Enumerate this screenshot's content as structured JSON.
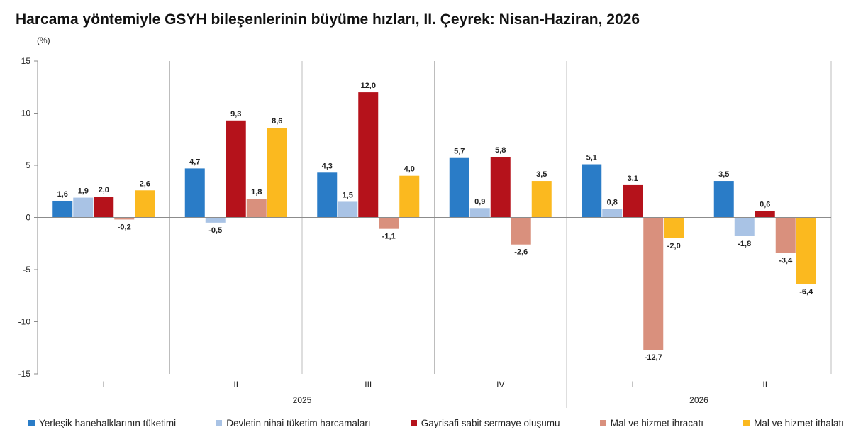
{
  "title": "Harcama yöntemiyle GSYH bileşenlerinin büyüme hızları, II. Çeyrek: Nisan-Haziran, 2026",
  "chart_data": {
    "type": "bar",
    "title": "Harcama yöntemiyle GSYH bileşenlerinin büyüme hızları, II. Çeyrek: Nisan-Haziran, 2026",
    "ylabel": "(%)",
    "ylim": [
      -15,
      15
    ],
    "yticks": [
      15,
      10,
      5,
      0,
      -5,
      -10,
      -15
    ],
    "grid": false,
    "legend_position": "bottom",
    "categories": [
      "I",
      "II",
      "III",
      "IV",
      "I",
      "II"
    ],
    "year_groups": [
      {
        "label": "2025",
        "categories": [
          0,
          1,
          2,
          3
        ]
      },
      {
        "label": "2026",
        "categories": [
          4,
          5
        ]
      }
    ],
    "series": [
      {
        "name": "Yerleşik hanehalklarının tüketimi",
        "color": "#2a7cc7",
        "values": [
          1.6,
          4.7,
          4.3,
          5.7,
          5.1,
          3.5
        ]
      },
      {
        "name": "Devletin nihai tüketim harcamaları",
        "color": "#a9c3e5",
        "values": [
          1.9,
          -0.5,
          1.5,
          0.9,
          0.8,
          -1.8
        ]
      },
      {
        "name": "Gayrisafi sabit sermaye oluşumu",
        "color": "#b5121b",
        "values": [
          2.0,
          9.3,
          12.0,
          5.8,
          3.1,
          0.6
        ]
      },
      {
        "name": "Mal ve hizmet ihracatı",
        "color": "#d9907d",
        "values": [
          -0.2,
          1.8,
          -1.1,
          -2.6,
          -12.7,
          -3.4
        ]
      },
      {
        "name": "Mal ve hizmet ithalatı",
        "color": "#fbb91f",
        "values": [
          2.6,
          8.6,
          4.0,
          3.5,
          -2.0,
          -6.4
        ]
      }
    ],
    "data_labels": [
      [
        "1,6",
        "4,7",
        "4,3",
        "5,7",
        "5,1",
        "3,5"
      ],
      [
        "1,9",
        "-0,5",
        "1,5",
        "0,9",
        "0,8",
        "-1,8"
      ],
      [
        "2,0",
        "9,3",
        "12,0",
        "5,8",
        "3,1",
        "0,6"
      ],
      [
        "-0,2",
        "1,8",
        "-1,1",
        "-2,6",
        "-12,7",
        "-3,4"
      ],
      [
        "2,6",
        "8,6",
        "4,0",
        "3,5",
        "-2,0",
        "-6,4"
      ]
    ]
  }
}
